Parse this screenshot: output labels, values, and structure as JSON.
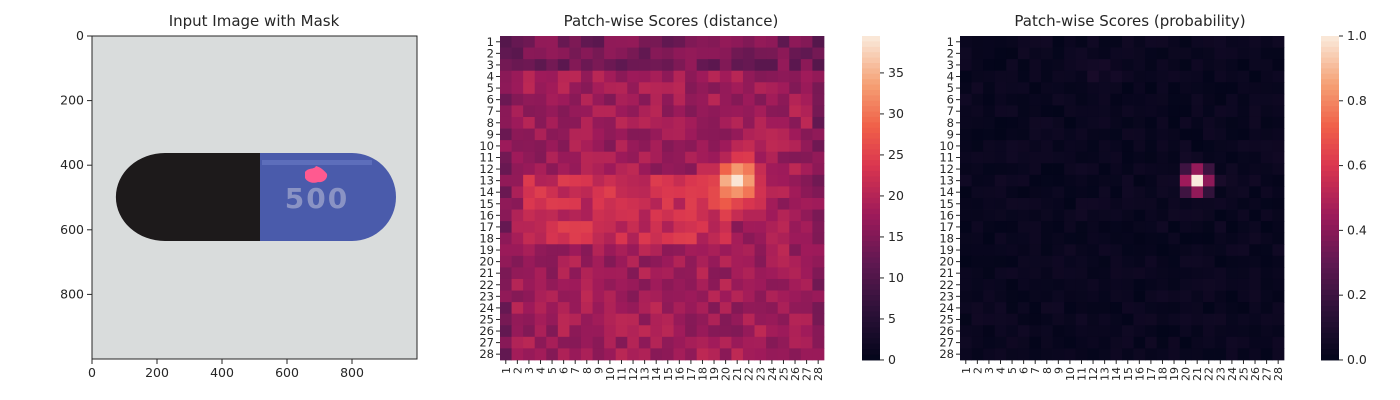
{
  "chart_data": [
    {
      "type": "image",
      "title": "Input Image with Mask",
      "xticks": [
        0,
        200,
        400,
        600,
        800
      ],
      "yticks": [
        0,
        200,
        400,
        600,
        800
      ],
      "xlim": [
        0,
        1000
      ],
      "ylim": [
        0,
        1000
      ],
      "capsule": {
        "dark_half_color": "#1d1a1b",
        "blue_half_color": "#4a5bab",
        "print_text": "500",
        "mask_color": "#ff5a90"
      }
    },
    {
      "type": "heatmap",
      "title": "Patch-wise Scores (distance)",
      "grid": [
        28,
        28
      ],
      "colormap": "rocket",
      "value_range": [
        0,
        39.5
      ],
      "colorbar_ticks": [
        0,
        5,
        10,
        15,
        20,
        25,
        30,
        35
      ],
      "base_value": 18,
      "hotspot": {
        "row": 13,
        "col": 21,
        "peak": 39
      },
      "band": {
        "rows": [
          13,
          18
        ],
        "cols": [
          3,
          20
        ],
        "value": 23
      }
    },
    {
      "type": "heatmap",
      "title": "Patch-wise Scores (probability)",
      "grid": [
        28,
        28
      ],
      "colormap": "rocket",
      "value_range": [
        0,
        1.0
      ],
      "colorbar_ticks": [
        "0.0",
        "0.2",
        "0.4",
        "0.6",
        "0.8",
        "1.0"
      ],
      "base_value": 0.02,
      "hotspot": {
        "row": 13,
        "col": 21,
        "peak": 1.0
      }
    }
  ]
}
